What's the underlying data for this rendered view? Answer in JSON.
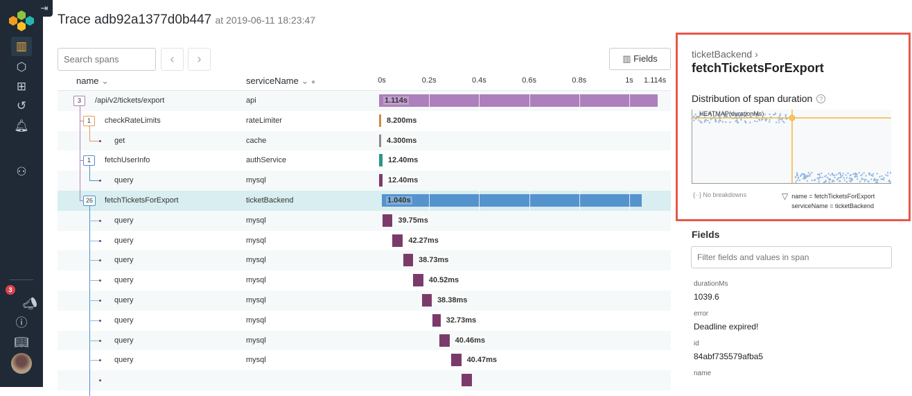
{
  "header": {
    "title": "Trace adb92a1377d0b447",
    "timestamp": "at 2019-06-11 18:23:47"
  },
  "sidebar": {
    "collapse_icon": "arrow-right-to-bar-icon",
    "notification_count": "3",
    "items": [
      "query-icon",
      "datasets-icon",
      "boards-icon",
      "history-icon",
      "triggers-icon",
      "team-icon",
      "announcements-icon",
      "help-icon",
      "docs-icon"
    ]
  },
  "toolbar": {
    "search_placeholder": "Search spans",
    "fields_label": "Fields"
  },
  "table": {
    "columns": {
      "name": "name",
      "service": "serviceName"
    },
    "ticks": [
      {
        "label": "0s",
        "value": 0
      },
      {
        "label": "0.2s",
        "value": 0.2
      },
      {
        "label": "0.4s",
        "value": 0.4
      },
      {
        "label": "0.6s",
        "value": 0.6
      },
      {
        "label": "0.8s",
        "value": 0.8
      },
      {
        "label": "1s",
        "value": 1
      },
      {
        "label": "1.114s",
        "value": 1.114
      }
    ],
    "total_s": 1.114,
    "rows": [
      {
        "name": "/api/v2/tickets/export",
        "service": "api",
        "count": "3",
        "depth": 0,
        "start_s": 0,
        "duration_s": 1.114,
        "label": "1.114s",
        "color": "#ad7fbd",
        "countColor": "#ad7fbd"
      },
      {
        "name": "checkRateLimits",
        "service": "rateLimiter",
        "count": "1",
        "depth": 1,
        "start_s": 0,
        "duration_s": 0.0082,
        "label": "8.200ms",
        "color": "#d08a45",
        "countColor": "#e59a55"
      },
      {
        "name": "get",
        "service": "cache",
        "count": "",
        "depth": 2,
        "start_s": 0,
        "duration_s": 0.0043,
        "label": "4.300ms",
        "color": "#8a8a8a"
      },
      {
        "name": "fetchUserInfo",
        "service": "authService",
        "count": "1",
        "depth": 1,
        "start_s": 0.001,
        "duration_s": 0.0124,
        "label": "12.40ms",
        "color": "#2a9687",
        "countColor": "#4a8fcf"
      },
      {
        "name": "query",
        "service": "mysql",
        "count": "",
        "depth": 2,
        "start_s": 0.001,
        "duration_s": 0.0124,
        "label": "12.40ms",
        "color": "#7b3b6a"
      },
      {
        "name": "fetchTicketsForExport",
        "service": "ticketBackend",
        "count": "26",
        "depth": 1,
        "start_s": 0.011,
        "duration_s": 1.04,
        "label": "1.040s",
        "color": "#5593cf",
        "countColor": "#4a8fcf",
        "selected": true
      },
      {
        "name": "query",
        "service": "mysql",
        "count": "",
        "depth": 2,
        "start_s": 0.014,
        "duration_s": 0.03975,
        "label": "39.75ms",
        "color": "#7b3b6a"
      },
      {
        "name": "query",
        "service": "mysql",
        "count": "",
        "depth": 2,
        "start_s": 0.053,
        "duration_s": 0.04227,
        "label": "42.27ms",
        "color": "#7b3b6a"
      },
      {
        "name": "query",
        "service": "mysql",
        "count": "",
        "depth": 2,
        "start_s": 0.097,
        "duration_s": 0.03873,
        "label": "38.73ms",
        "color": "#7b3b6a"
      },
      {
        "name": "query",
        "service": "mysql",
        "count": "",
        "depth": 2,
        "start_s": 0.136,
        "duration_s": 0.04052,
        "label": "40.52ms",
        "color": "#7b3b6a"
      },
      {
        "name": "query",
        "service": "mysql",
        "count": "",
        "depth": 2,
        "start_s": 0.172,
        "duration_s": 0.03838,
        "label": "38.38ms",
        "color": "#7b3b6a"
      },
      {
        "name": "query",
        "service": "mysql",
        "count": "",
        "depth": 2,
        "start_s": 0.213,
        "duration_s": 0.03273,
        "label": "32.73ms",
        "color": "#7b3b6a"
      },
      {
        "name": "query",
        "service": "mysql",
        "count": "",
        "depth": 2,
        "start_s": 0.241,
        "duration_s": 0.04046,
        "label": "40.46ms",
        "color": "#7b3b6a"
      },
      {
        "name": "query",
        "service": "mysql",
        "count": "",
        "depth": 2,
        "start_s": 0.288,
        "duration_s": 0.04047,
        "label": "40.47ms",
        "color": "#7b3b6a"
      },
      {
        "name": "",
        "service": "",
        "count": "",
        "depth": 2,
        "start_s": 0.33,
        "duration_s": 0.04,
        "label": "",
        "color": "#7b3b6a"
      }
    ]
  },
  "detail": {
    "service": "ticketBackend",
    "span": "fetchTicketsForExport",
    "dist_title": "Distribution of span duration",
    "heatmap_label": "HEATMAP(durationMs)",
    "no_breakdowns": "No breakdowns",
    "filter1": "name = fetchTicketsForExport",
    "filter2": "serviceName = ticketBackend",
    "accent": "#f5b53f",
    "border": "#e8574a"
  },
  "fields": {
    "title": "Fields",
    "placeholder": "Filter fields and values in span",
    "items": [
      {
        "key": "durationMs",
        "value": "1039.6"
      },
      {
        "key": "error",
        "value": "Deadline expired!"
      },
      {
        "key": "id",
        "value": "84abf735579afba5"
      },
      {
        "key": "name",
        "value": ""
      }
    ]
  }
}
